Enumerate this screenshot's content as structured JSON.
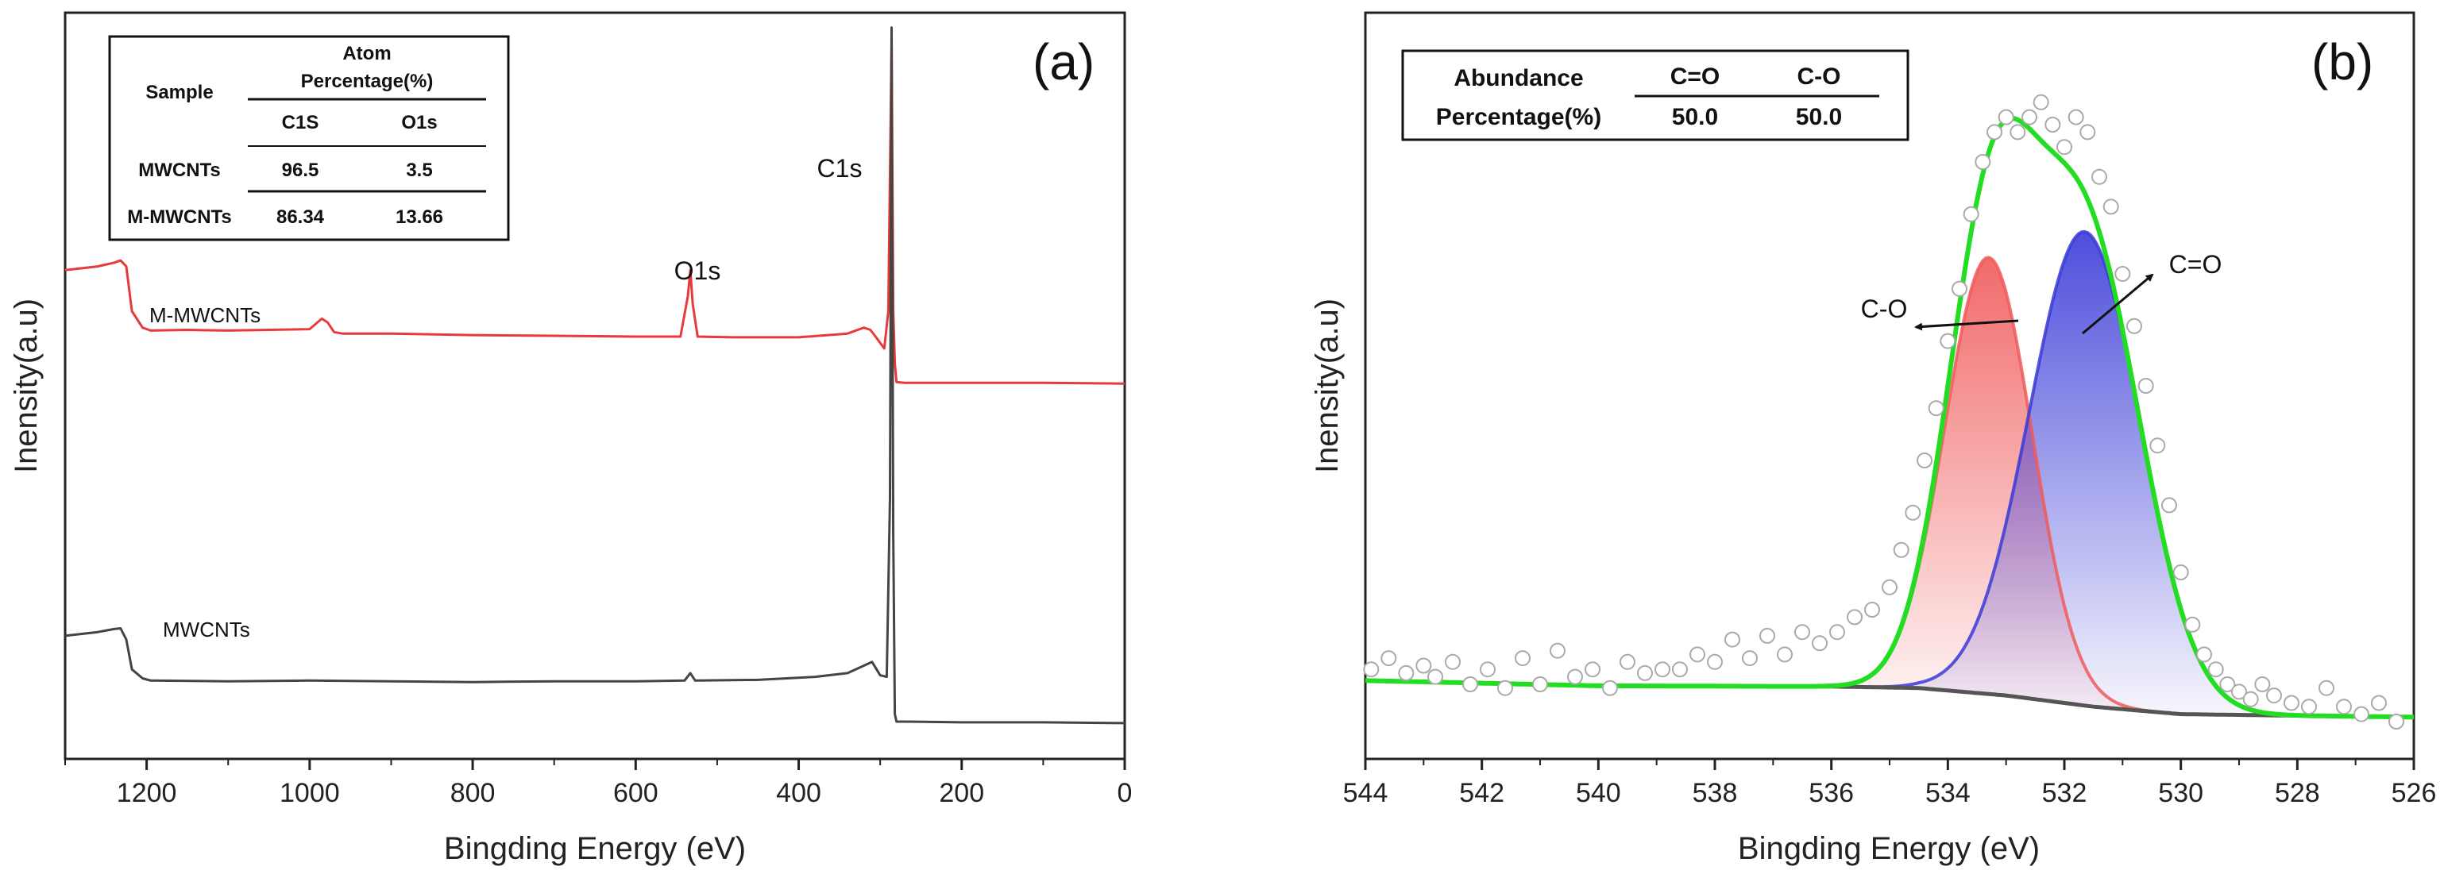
{
  "chart_data": [
    {
      "panel": "(a)",
      "type": "line",
      "xlabel": "Bingding Energy (eV)",
      "ylabel": "Inensity(a.u)",
      "xlim": [
        1300,
        0
      ],
      "x_reversed": true,
      "xticks": [
        1200,
        1000,
        800,
        600,
        400,
        200,
        0
      ],
      "peak_labels": [
        {
          "text": "O1s",
          "x": 533
        },
        {
          "text": "C1s",
          "x": 285
        }
      ],
      "series": [
        {
          "name": "M-MWCNTs",
          "color": "#e8393b",
          "x": [
            1300,
            1260,
            1240,
            1232,
            1225,
            1218,
            1205,
            1195,
            1150,
            1100,
            1050,
            1000,
            985,
            978,
            970,
            960,
            900,
            800,
            700,
            600,
            545,
            536,
            533,
            530,
            524,
            480,
            400,
            340,
            320,
            312,
            305,
            295,
            290,
            286,
            284,
            282,
            280,
            270,
            200,
            100,
            0
          ],
          "y": [
            0.655,
            0.66,
            0.665,
            0.668,
            0.66,
            0.6,
            0.578,
            0.574,
            0.575,
            0.574,
            0.575,
            0.576,
            0.59,
            0.585,
            0.572,
            0.57,
            0.57,
            0.568,
            0.567,
            0.566,
            0.566,
            0.62,
            0.655,
            0.61,
            0.566,
            0.565,
            0.565,
            0.57,
            0.578,
            0.575,
            0.565,
            0.55,
            0.6,
            0.96,
            0.6,
            0.53,
            0.505,
            0.504,
            0.504,
            0.504,
            0.503
          ]
        },
        {
          "name": "MWCNTs",
          "color": "#444444",
          "x": [
            1300,
            1260,
            1240,
            1232,
            1225,
            1218,
            1205,
            1195,
            1100,
            1000,
            900,
            800,
            700,
            600,
            540,
            533,
            527,
            450,
            380,
            340,
            320,
            310,
            300,
            292,
            288,
            286,
            284,
            282,
            280,
            270,
            200,
            100,
            0
          ],
          "y": [
            0.165,
            0.17,
            0.174,
            0.175,
            0.16,
            0.12,
            0.108,
            0.105,
            0.104,
            0.105,
            0.104,
            0.103,
            0.104,
            0.104,
            0.105,
            0.115,
            0.105,
            0.106,
            0.11,
            0.115,
            0.125,
            0.13,
            0.112,
            0.11,
            0.35,
            0.98,
            0.3,
            0.06,
            0.05,
            0.05,
            0.049,
            0.049,
            0.048
          ]
        }
      ],
      "table": {
        "header_sample": "Sample",
        "header_group_line1": "Atom",
        "header_group_line2": "Percentage(%)",
        "col1": "C1S",
        "col2": "O1s",
        "rows": [
          {
            "sample": "MWCNTs",
            "c1s": "96.5",
            "o1s": "3.5"
          },
          {
            "sample": "M-MWCNTs",
            "c1s": "86.34",
            "o1s": "13.66"
          }
        ]
      }
    },
    {
      "panel": "(b)",
      "type": "line",
      "xlabel": "Bingding Energy (eV)",
      "ylabel": "Inensity(a.u)",
      "xlim": [
        544,
        526
      ],
      "x_reversed": true,
      "xticks": [
        544,
        542,
        540,
        538,
        536,
        534,
        532,
        530,
        528,
        526
      ],
      "peak_labels": [
        {
          "text": "C-O",
          "x": 533.3
        },
        {
          "text": "C=O",
          "x": 531.7
        }
      ],
      "table": {
        "header": "Abundance",
        "row_label": "Percentage(%)",
        "columns": [
          "C=O",
          "C-O"
        ],
        "values": [
          "50.0",
          "50.0"
        ]
      },
      "components": [
        {
          "name": "C-O",
          "center": 533.3,
          "sigma": 0.75,
          "height": 0.585,
          "color": "#f05a5a"
        },
        {
          "name": "C=O",
          "center": 531.65,
          "sigma": 0.95,
          "height": 0.635,
          "color": "#3a3ad8"
        }
      ],
      "background": {
        "x": [
          544,
          540,
          536,
          534.5,
          533,
          531.5,
          530,
          528,
          526
        ],
        "y": [
          0.105,
          0.098,
          0.097,
          0.095,
          0.085,
          0.07,
          0.06,
          0.058,
          0.056
        ]
      },
      "envelope_color": "#22dd22",
      "raw_points": {
        "x": [
          543.9,
          543.6,
          543.3,
          543.0,
          542.8,
          542.5,
          542.2,
          541.9,
          541.6,
          541.3,
          541.0,
          540.7,
          540.4,
          540.1,
          539.8,
          539.5,
          539.2,
          538.9,
          538.6,
          538.3,
          538.0,
          537.7,
          537.4,
          537.1,
          536.8,
          536.5,
          536.2,
          535.9,
          535.6,
          535.3,
          535.0,
          534.8,
          534.6,
          534.4,
          534.2,
          534.0,
          533.8,
          533.6,
          533.4,
          533.2,
          533.0,
          532.8,
          532.6,
          532.4,
          532.2,
          532.0,
          531.8,
          531.6,
          531.4,
          531.2,
          531.0,
          530.8,
          530.6,
          530.4,
          530.2,
          530.0,
          529.8,
          529.6,
          529.4,
          529.2,
          529.0,
          528.8,
          528.6,
          528.4,
          528.1,
          527.8,
          527.5,
          527.2,
          526.9,
          526.6,
          526.3
        ],
        "y": [
          0.12,
          0.135,
          0.115,
          0.125,
          0.11,
          0.13,
          0.1,
          0.12,
          0.095,
          0.135,
          0.1,
          0.145,
          0.11,
          0.12,
          0.095,
          0.13,
          0.115,
          0.12,
          0.12,
          0.14,
          0.13,
          0.16,
          0.135,
          0.165,
          0.14,
          0.17,
          0.155,
          0.17,
          0.19,
          0.2,
          0.23,
          0.28,
          0.33,
          0.4,
          0.47,
          0.56,
          0.63,
          0.73,
          0.8,
          0.84,
          0.86,
          0.84,
          0.86,
          0.88,
          0.85,
          0.82,
          0.86,
          0.84,
          0.78,
          0.74,
          0.65,
          0.58,
          0.5,
          0.42,
          0.34,
          0.25,
          0.18,
          0.14,
          0.12,
          0.1,
          0.09,
          0.08,
          0.1,
          0.085,
          0.075,
          0.07,
          0.095,
          0.07,
          0.06,
          0.075,
          0.05
        ]
      }
    }
  ]
}
